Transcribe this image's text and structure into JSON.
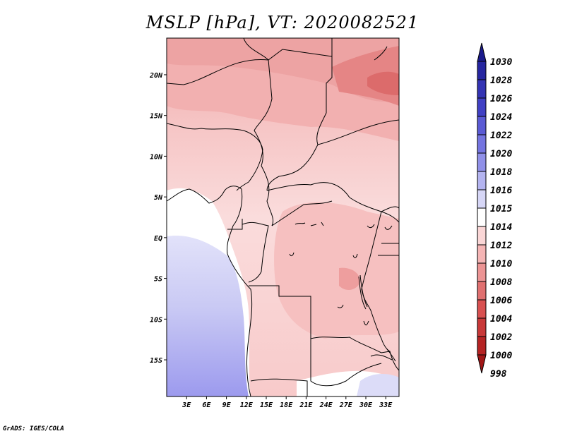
{
  "title": "MSLP [hPa], VT: 2020082521",
  "footer": "GrADS: IGES/COLA",
  "map": {
    "lat_labels": [
      "20N",
      "15N",
      "10N",
      "5N",
      "EQ",
      "5S",
      "10S",
      "15S"
    ],
    "lon_labels": [
      "3E",
      "6E",
      "9E",
      "12E",
      "15E",
      "18E",
      "21E",
      "24E",
      "27E",
      "30E",
      "33E"
    ],
    "extent": {
      "lon_min": 0,
      "lon_max": 35,
      "lat_min": -19.5,
      "lat_max": 24.5
    }
  },
  "colorbar": {
    "labels": [
      "1030",
      "1028",
      "1026",
      "1024",
      "1022",
      "1020",
      "1018",
      "1016",
      "1015",
      "1014",
      "1012",
      "1010",
      "1008",
      "1006",
      "1004",
      "1002",
      "1000",
      "998"
    ],
    "colors": [
      "#1a1a8c",
      "#2626a0",
      "#3333b3",
      "#4040c4",
      "#5a5ad4",
      "#7474e0",
      "#9090e8",
      "#b4b4f0",
      "#d6d6f6",
      "#ffffff",
      "#fad6d6",
      "#f5b5b5",
      "#ec9494",
      "#e07070",
      "#d85050",
      "#c83838",
      "#b52323",
      "#a11616"
    ]
  },
  "colors": {
    "land_outline": "#000000"
  }
}
